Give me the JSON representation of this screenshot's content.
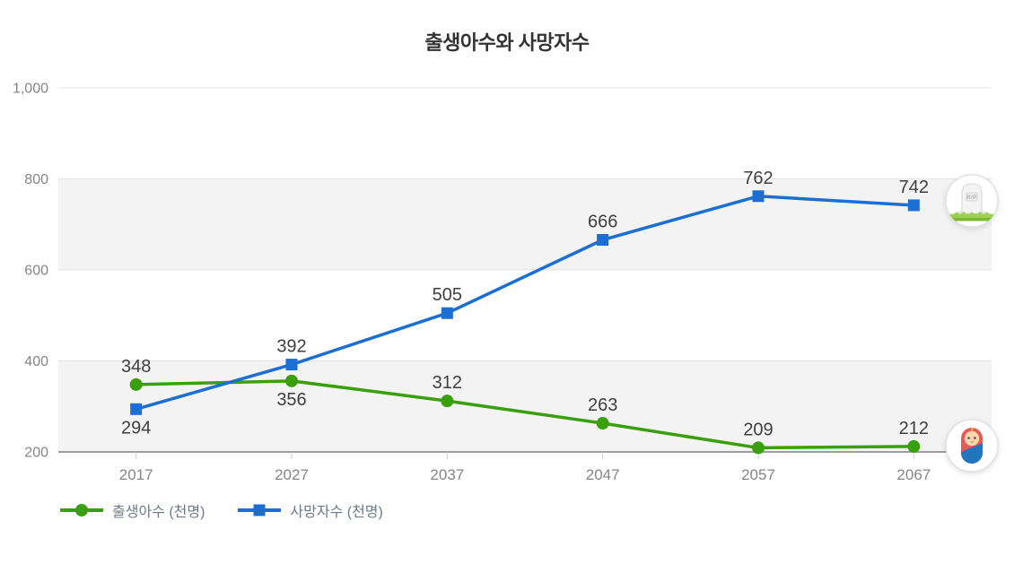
{
  "title": "출생아수와 사망자수",
  "colors": {
    "births": "#3a9f0d",
    "deaths": "#1b6ed2",
    "band": "#f3f3f3",
    "grid": "#e3e3e3",
    "axis_line": "#9e9e9e",
    "tick_label": "#858585",
    "data_label": "#3f3f3f",
    "legend_text": "#6d7a89",
    "title_text": "#333333"
  },
  "chart_data": {
    "type": "line",
    "title": "출생아수와 사망자수",
    "x": [
      "2017",
      "2027",
      "2037",
      "2047",
      "2057",
      "2067"
    ],
    "series": [
      {
        "name": "출생아수 (천명)",
        "color": "#3a9f0d",
        "marker": "circle",
        "values": [
          348,
          356,
          312,
          263,
          209,
          212
        ],
        "label_position": [
          "above",
          "below",
          "above",
          "above",
          "above",
          "above"
        ]
      },
      {
        "name": "사망자수 (천명)",
        "color": "#1b6ed2",
        "marker": "square",
        "values": [
          294,
          392,
          505,
          666,
          762,
          742
        ],
        "label_position": [
          "below",
          "above",
          "above",
          "above",
          "above",
          "above"
        ]
      }
    ],
    "xlabel": "",
    "ylabel": "",
    "ylim": [
      200,
      1000
    ],
    "yticks": [
      200,
      400,
      600,
      800,
      1000
    ],
    "ytick_labels": [
      "200",
      "400",
      "600",
      "800",
      "1,000"
    ],
    "bands": [
      [
        200,
        400
      ],
      [
        600,
        800
      ]
    ],
    "grid": true,
    "legend_position": "bottom-left"
  },
  "legend": {
    "items": [
      {
        "label": "출생아수 (천명)"
      },
      {
        "label": "사망자수 (천명)"
      }
    ]
  },
  "icons": {
    "tombstone_label": "RIP"
  }
}
